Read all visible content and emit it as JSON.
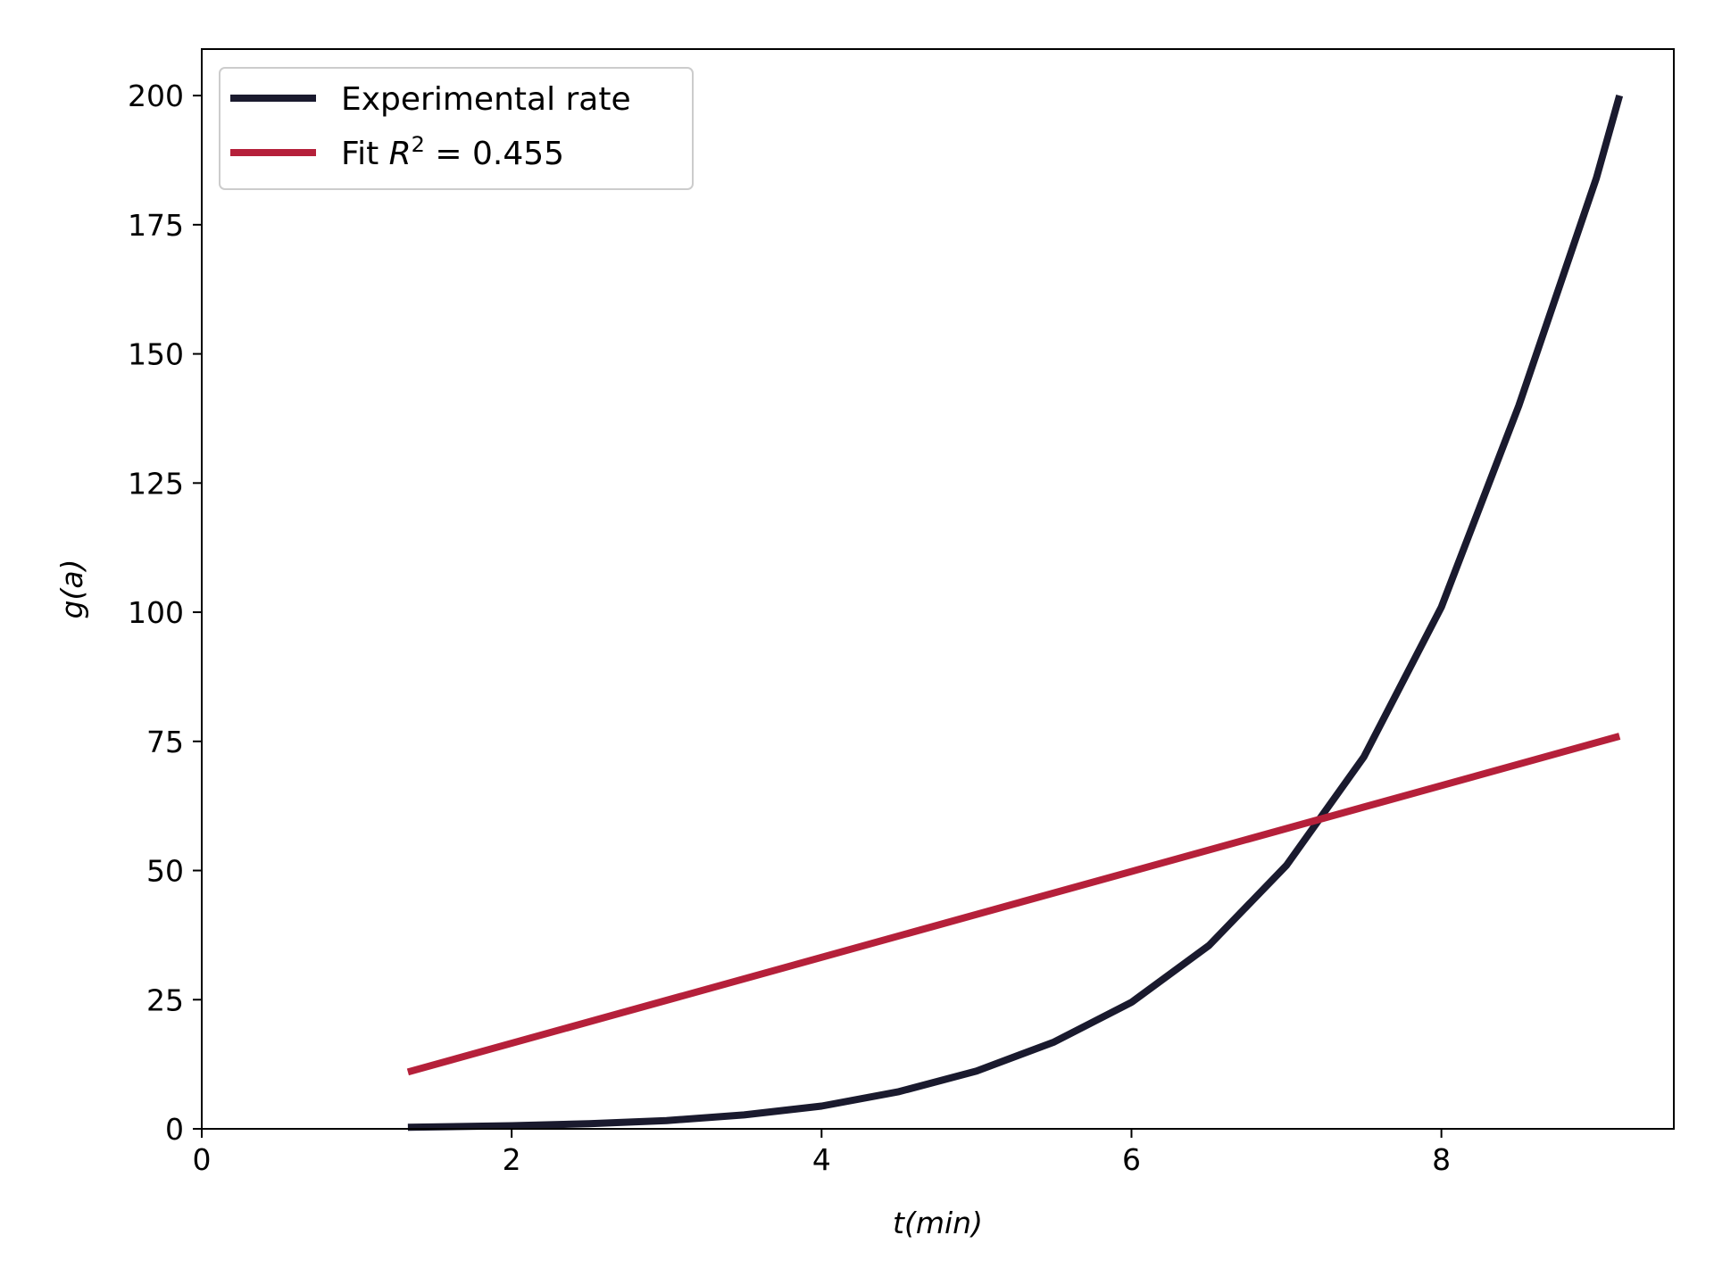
{
  "chart_data": {
    "type": "line",
    "title": "",
    "xlabel": "t(min)",
    "ylabel": "g(a)",
    "xlim": [
      0,
      9.5
    ],
    "ylim": [
      0,
      209
    ],
    "xticks": [
      0,
      2,
      4,
      6,
      8
    ],
    "yticks": [
      0,
      25,
      50,
      75,
      100,
      125,
      150,
      175,
      200
    ],
    "grid": false,
    "legend_position": "top-left",
    "series": [
      {
        "name": "Experimental rate",
        "color": "#1a1a2e",
        "x": [
          1.33,
          2.0,
          2.5,
          3.0,
          3.5,
          4.0,
          4.5,
          5.0,
          5.5,
          6.0,
          6.5,
          7.0,
          7.5,
          8.0,
          8.5,
          9.0,
          9.15
        ],
        "y": [
          0.3,
          0.6,
          1.0,
          1.6,
          2.7,
          4.4,
          7.2,
          11.2,
          16.8,
          24.5,
          35.5,
          51.0,
          72.0,
          101.0,
          140.0,
          184.0,
          200.0
        ]
      },
      {
        "name": "Fit R² = 0.455",
        "color": "#b5203a",
        "x": [
          1.33,
          9.15
        ],
        "y": [
          11.0,
          76.0
        ]
      }
    ],
    "legend": [
      {
        "label": "Experimental rate",
        "color": "#1a1a2e"
      },
      {
        "label_prefix": "Fit ",
        "label_var": "R",
        "label_sup": "2",
        "label_suffix": " = 0.455",
        "color": "#b5203a"
      }
    ]
  }
}
